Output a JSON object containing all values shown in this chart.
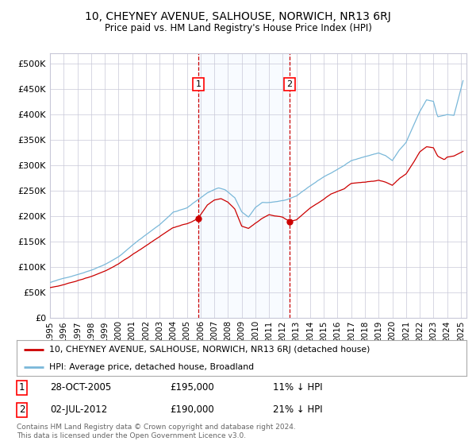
{
  "title": "10, CHEYNEY AVENUE, SALHOUSE, NORWICH, NR13 6RJ",
  "subtitle": "Price paid vs. HM Land Registry's House Price Index (HPI)",
  "legend_line1": "10, CHEYNEY AVENUE, SALHOUSE, NORWICH, NR13 6RJ (detached house)",
  "legend_line2": "HPI: Average price, detached house, Broadland",
  "marker1_date": "28-OCT-2005",
  "marker1_price": 195000,
  "marker1_label": "11% ↓ HPI",
  "marker2_date": "02-JUL-2012",
  "marker2_price": 190000,
  "marker2_label": "21% ↓ HPI",
  "footer": "Contains HM Land Registry data © Crown copyright and database right 2024.\nThis data is licensed under the Open Government Licence v3.0.",
  "hpi_color": "#7ab8d9",
  "price_color": "#cc0000",
  "shade_color": "#ddeeff",
  "background_color": "#ffffff",
  "grid_color": "#c8c8d8",
  "yticks": [
    0,
    50000,
    100000,
    150000,
    200000,
    250000,
    300000,
    350000,
    400000,
    450000,
    500000
  ],
  "ylim": [
    0,
    520000
  ],
  "xlabel_years": [
    "1995",
    "1996",
    "1997",
    "1998",
    "1999",
    "2000",
    "2001",
    "2002",
    "2003",
    "2004",
    "2005",
    "2006",
    "2007",
    "2008",
    "2009",
    "2010",
    "2011",
    "2012",
    "2013",
    "2014",
    "2015",
    "2016",
    "2017",
    "2018",
    "2019",
    "2020",
    "2021",
    "2022",
    "2023",
    "2024",
    "2025"
  ]
}
